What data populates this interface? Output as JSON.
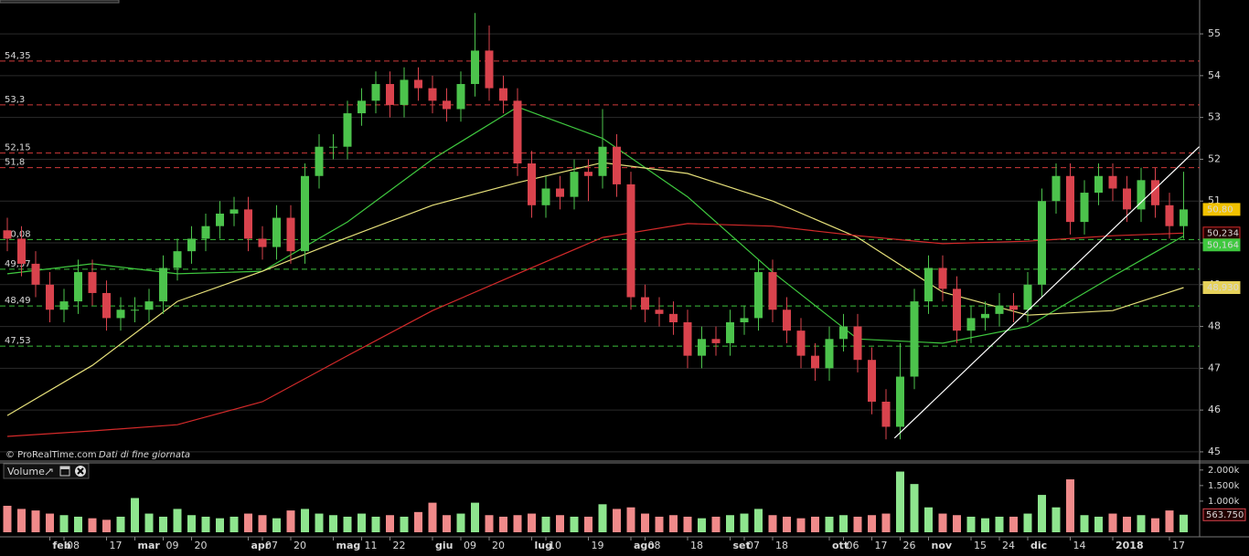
{
  "chart_data": [
    {
      "type": "candlestick",
      "credit": "© ProRealTime.com",
      "note": "Dati di fine giornata",
      "up_color": "#4cc34c",
      "down_color": "#d9434d",
      "ylim": [
        44.78,
        55.81
      ],
      "yticks": [
        45,
        46,
        47,
        48,
        49,
        50,
        51,
        52,
        53,
        54,
        55
      ],
      "grid": true,
      "open": [
        50.3,
        50.1,
        49.5,
        49.0,
        48.4,
        48.6,
        49.3,
        48.8,
        48.2,
        48.4,
        48.4,
        48.6,
        49.4,
        49.8,
        50.1,
        50.4,
        50.7,
        50.8,
        50.1,
        49.9,
        50.6,
        49.8,
        51.6,
        52.3,
        52.3,
        53.1,
        53.4,
        53.8,
        53.3,
        53.9,
        53.7,
        53.4,
        53.2,
        53.8,
        54.6,
        53.7,
        53.4,
        51.9,
        50.9,
        51.3,
        51.1,
        51.7,
        51.6,
        52.3,
        51.4,
        48.7,
        48.4,
        48.3,
        48.1,
        47.3,
        47.7,
        47.6,
        48.1,
        48.2,
        49.3,
        48.4,
        47.9,
        47.3,
        47.0,
        47.7,
        48.0,
        47.2,
        46.2,
        45.6,
        46.8,
        48.6,
        49.4,
        48.9,
        47.9,
        48.2,
        48.3,
        48.5,
        48.4,
        49.0,
        51.0,
        51.6,
        50.5,
        51.2,
        51.6,
        51.3,
        50.8,
        51.5,
        50.9,
        50.4
      ],
      "high": [
        50.6,
        50.4,
        49.8,
        49.3,
        48.9,
        49.6,
        49.6,
        49.1,
        48.7,
        48.7,
        48.9,
        49.7,
        50.1,
        50.4,
        50.7,
        51.0,
        51.1,
        51.1,
        50.4,
        50.9,
        50.9,
        51.9,
        52.6,
        52.6,
        53.4,
        53.7,
        54.1,
        54.1,
        54.2,
        54.2,
        54.0,
        53.7,
        54.1,
        55.5,
        55.2,
        54.0,
        53.7,
        52.2,
        51.6,
        51.6,
        52.0,
        52.0,
        53.2,
        52.6,
        51.7,
        49.0,
        48.7,
        48.6,
        48.4,
        48.0,
        48.0,
        48.4,
        48.5,
        49.6,
        49.6,
        48.7,
        48.2,
        47.6,
        48.0,
        48.3,
        48.3,
        47.5,
        46.5,
        47.6,
        48.9,
        49.7,
        49.7,
        49.2,
        48.5,
        48.6,
        48.8,
        48.8,
        49.3,
        51.3,
        51.9,
        51.9,
        51.5,
        51.9,
        51.9,
        51.6,
        51.8,
        51.8,
        51.2,
        51.7
      ],
      "low": [
        49.8,
        49.2,
        48.7,
        48.1,
        48.1,
        48.3,
        48.5,
        47.9,
        47.9,
        48.1,
        48.1,
        48.3,
        49.1,
        49.5,
        49.8,
        50.1,
        50.4,
        49.8,
        49.6,
        49.6,
        49.5,
        49.5,
        51.3,
        52.0,
        52.0,
        52.8,
        53.1,
        53.0,
        53.0,
        53.4,
        53.1,
        52.9,
        52.9,
        53.5,
        53.4,
        53.1,
        51.6,
        50.6,
        50.6,
        50.8,
        50.8,
        51.0,
        51.3,
        51.1,
        48.4,
        48.1,
        48.0,
        47.8,
        47.0,
        47.0,
        47.3,
        47.3,
        47.8,
        47.9,
        48.1,
        47.6,
        47.0,
        46.7,
        46.7,
        47.4,
        46.9,
        45.9,
        45.3,
        45.3,
        46.5,
        48.3,
        48.6,
        47.6,
        47.6,
        47.9,
        48.0,
        48.1,
        48.1,
        48.7,
        50.7,
        50.2,
        50.2,
        50.9,
        51.0,
        50.5,
        50.5,
        50.6,
        50.1,
        50.1
      ],
      "close": [
        50.1,
        49.5,
        49.0,
        48.4,
        48.6,
        49.3,
        48.8,
        48.2,
        48.4,
        48.4,
        48.6,
        49.4,
        49.8,
        50.1,
        50.4,
        50.7,
        50.8,
        50.1,
        49.9,
        50.6,
        49.8,
        51.6,
        52.3,
        52.3,
        53.1,
        53.4,
        53.8,
        53.3,
        53.9,
        53.7,
        53.4,
        53.2,
        53.8,
        54.6,
        53.7,
        53.4,
        51.9,
        50.9,
        51.3,
        51.1,
        51.7,
        51.6,
        52.3,
        51.4,
        48.7,
        48.4,
        48.3,
        48.1,
        47.3,
        47.7,
        47.6,
        48.1,
        48.2,
        49.3,
        48.4,
        47.9,
        47.3,
        47.0,
        47.7,
        48.0,
        47.2,
        46.2,
        45.6,
        46.8,
        48.6,
        49.4,
        48.9,
        47.9,
        48.2,
        48.3,
        48.5,
        48.4,
        49.0,
        51.0,
        51.6,
        50.5,
        51.2,
        51.6,
        51.3,
        50.8,
        51.5,
        50.9,
        50.4,
        50.8
      ],
      "series": [
        {
          "color": "#3fc83f",
          "x": [
            0,
            6,
            12,
            18,
            24,
            30,
            36,
            42,
            48,
            54,
            60,
            66,
            72,
            78,
            83
          ],
          "values": [
            49.26,
            49.5,
            49.26,
            49.32,
            50.5,
            52.0,
            53.25,
            52.5,
            51.1,
            49.3,
            47.7,
            47.6,
            48.0,
            49.2,
            50.164
          ]
        },
        {
          "color": "#e6e07a",
          "x": [
            0,
            6,
            12,
            18,
            24,
            30,
            36,
            42,
            48,
            54,
            60,
            66,
            72,
            78,
            83
          ],
          "values": [
            45.87,
            47.07,
            48.6,
            49.32,
            50.13,
            50.9,
            51.44,
            51.92,
            51.66,
            51.0,
            50.13,
            48.82,
            48.27,
            48.38,
            48.93
          ]
        },
        {
          "color": "#d42a2a",
          "x": [
            0,
            6,
            12,
            18,
            24,
            30,
            36,
            42,
            48,
            54,
            60,
            66,
            72,
            78,
            83
          ],
          "values": [
            45.37,
            45.5,
            45.65,
            46.2,
            47.3,
            48.38,
            49.26,
            50.13,
            50.46,
            50.4,
            50.17,
            49.98,
            50.04,
            50.17,
            50.234
          ]
        }
      ],
      "trendline": {
        "color": "#ffffff",
        "x": [
          62.6,
          84.1
        ],
        "values": [
          45.33,
          52.3
        ]
      },
      "levels": [
        {
          "value": 54.35,
          "label": "54,35",
          "color": "#d03a3a"
        },
        {
          "value": 53.3,
          "label": "53,3",
          "color": "#d03a3a"
        },
        {
          "value": 52.15,
          "label": "52,15",
          "color": "#d03a3a"
        },
        {
          "value": 51.8,
          "label": "51,8",
          "color": "#d03a3a"
        },
        {
          "value": 50.08,
          "label": "50,08",
          "color": "#3cc03c"
        },
        {
          "value": 49.37,
          "label": "49,37",
          "color": "#3cc03c"
        },
        {
          "value": 48.49,
          "label": "48,49",
          "color": "#3cc03c"
        },
        {
          "value": 47.53,
          "label": "47,53",
          "color": "#3cc03c"
        }
      ],
      "price_tags": [
        {
          "value": 50.8,
          "label": "50,80",
          "color": "#f2c200"
        },
        {
          "value": 50.234,
          "label": "50,234",
          "color": "#d42a2a"
        },
        {
          "value": 50.164,
          "label": "50,164",
          "color": "#3fc83f"
        },
        {
          "value": 48.93,
          "label": "48,930",
          "color": "#e6d25a"
        }
      ]
    },
    {
      "type": "bar",
      "title": "Volume",
      "up_color": "#8ee58e",
      "down_color": "#f08a8a",
      "ylim": [
        0,
        2200
      ],
      "yticks": [
        {
          "value": 2000,
          "label": "2.000k"
        },
        {
          "value": 1500,
          "label": "1.500k"
        },
        {
          "value": 1000,
          "label": "1.000k"
        }
      ],
      "values": [
        850,
        750,
        700,
        600,
        550,
        500,
        450,
        400,
        500,
        1100,
        600,
        500,
        750,
        550,
        500,
        450,
        500,
        600,
        550,
        450,
        700,
        750,
        600,
        550,
        500,
        600,
        500,
        550,
        500,
        650,
        950,
        550,
        600,
        950,
        550,
        500,
        550,
        600,
        500,
        550,
        500,
        500,
        900,
        750,
        800,
        600,
        500,
        550,
        500,
        450,
        500,
        550,
        600,
        750,
        550,
        500,
        450,
        500,
        500,
        550,
        500,
        550,
        600,
        1950,
        1550,
        800,
        600,
        550,
        500,
        450,
        500,
        500,
        600,
        1200,
        800,
        1700,
        550,
        500,
        600,
        500,
        550,
        450,
        700,
        563.75
      ],
      "value_tag": {
        "value": 563.75,
        "label": "563.750",
        "color": "#d9434d"
      },
      "categories": [
        null,
        null,
        null,
        "feb",
        "08",
        null,
        null,
        "17",
        null,
        "mar",
        null,
        "09",
        null,
        "20",
        null,
        null,
        null,
        "apr",
        "07",
        null,
        "20",
        null,
        null,
        "mag",
        null,
        "11",
        null,
        "22",
        null,
        null,
        "giu",
        null,
        "09",
        null,
        "20",
        null,
        null,
        "lug",
        "10",
        null,
        null,
        "19",
        null,
        null,
        "ago",
        "08",
        null,
        null,
        "18",
        null,
        null,
        "set",
        "07",
        null,
        "18",
        null,
        null,
        null,
        "ott",
        "06",
        null,
        "17",
        null,
        "26",
        null,
        "nov",
        null,
        null,
        "15",
        null,
        "24",
        null,
        "dic",
        null,
        null,
        "14",
        null,
        null,
        "2018",
        null,
        null,
        null,
        "17",
        null
      ]
    }
  ]
}
